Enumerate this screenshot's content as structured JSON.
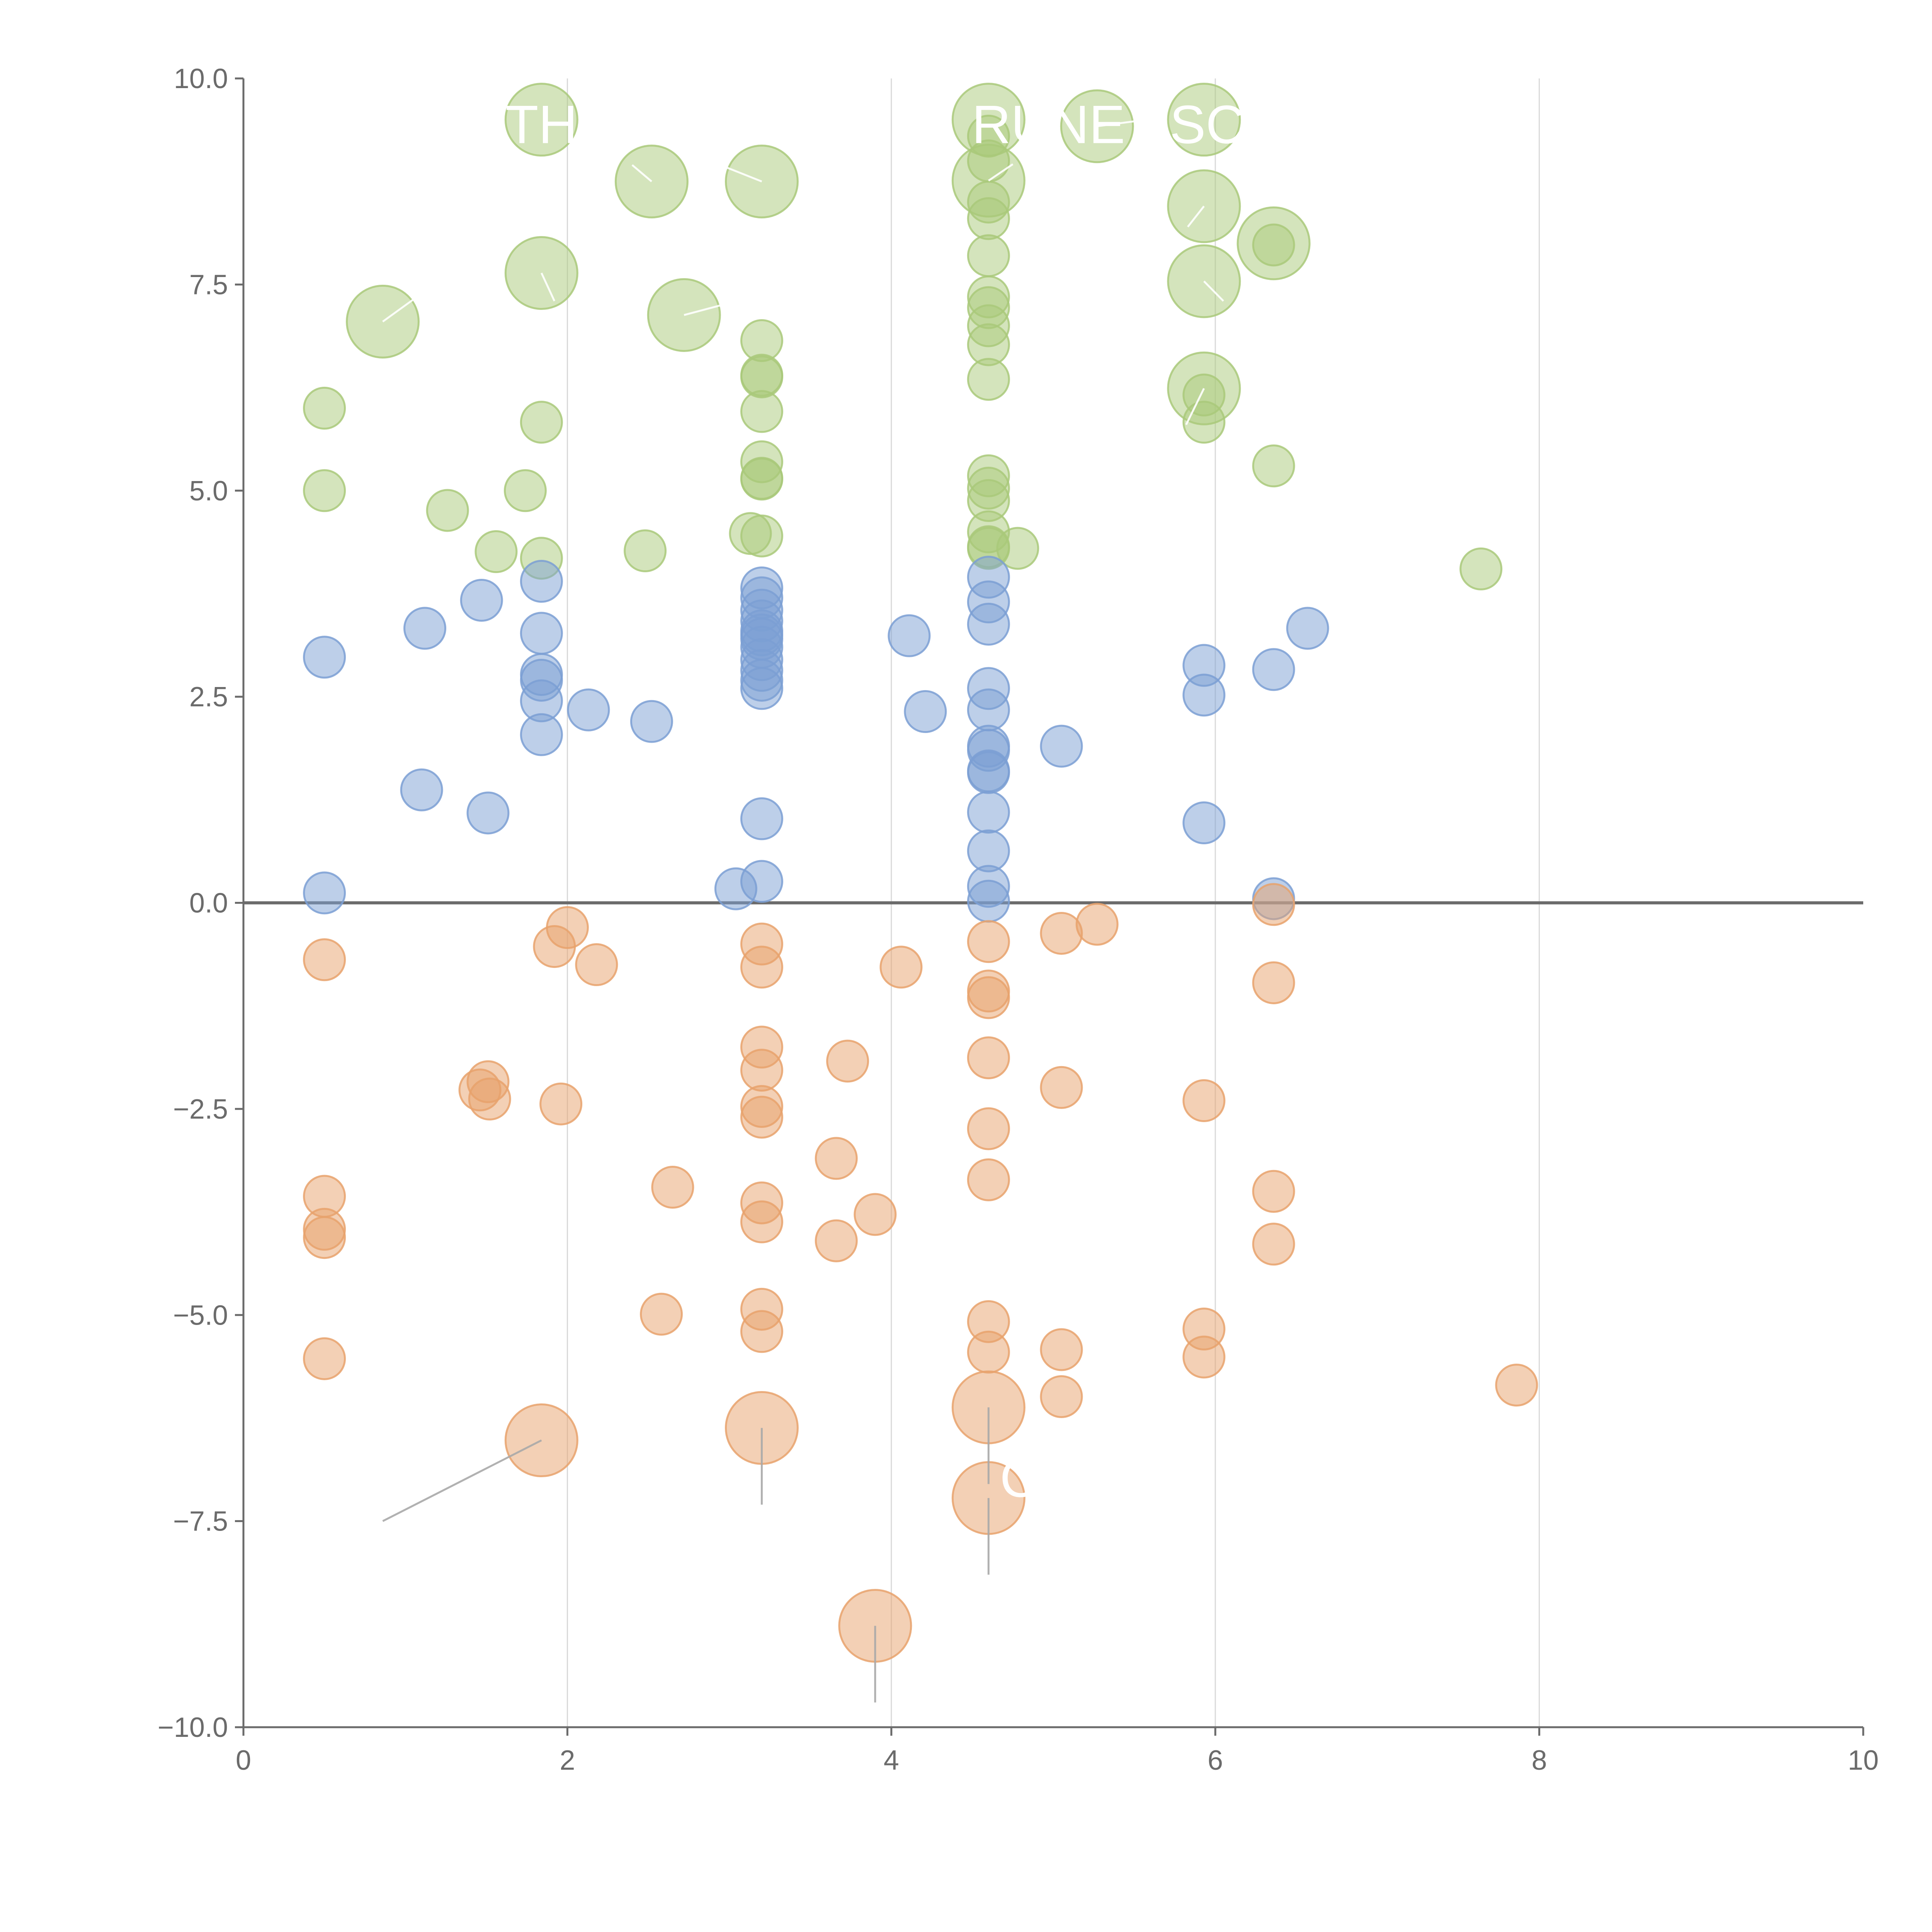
{
  "chart_data": {
    "type": "scatter",
    "title": "",
    "xlabel": "",
    "ylabel": "",
    "xlim": [
      0,
      10
    ],
    "ylim": [
      -10,
      10
    ],
    "grid": "vertical",
    "x_ticks": [
      0,
      2,
      4,
      6,
      8,
      10
    ],
    "x_tick_labels": [
      "0",
      "2",
      "4",
      "6",
      "8",
      "10"
    ],
    "y_ticks": [
      10,
      7.5,
      5,
      2.5,
      0,
      -2.5,
      -5,
      -7.5,
      -10
    ],
    "y_tick_labels": [
      "10.0",
      "7.5",
      "5.0",
      "2.5",
      "0.0",
      "−2.5",
      "−5.0",
      "−7.5",
      "−10.0"
    ],
    "zero_line": 0,
    "colors": {
      "green": "#a9c97a",
      "blue": "#7b9fd4",
      "orange": "#e8a26c",
      "axis": "#6b6b6b",
      "grid": "#d9d9d9",
      "leader": "#a8a8a8"
    },
    "series": [
      {
        "name": "green",
        "color_key": "green",
        "points": [
          {
            "x": 1.84,
            "y": 9.5,
            "s": "L"
          },
          {
            "x": 2.52,
            "y": 8.75,
            "s": "L"
          },
          {
            "x": 3.2,
            "y": 8.75,
            "s": "L"
          },
          {
            "x": 4.6,
            "y": 9.5,
            "s": "L"
          },
          {
            "x": 4.6,
            "y": 8.76,
            "s": "L"
          },
          {
            "x": 5.27,
            "y": 9.42,
            "s": "L"
          },
          {
            "x": 5.93,
            "y": 9.5,
            "s": "L"
          },
          {
            "x": 5.93,
            "y": 8.45,
            "s": "L"
          },
          {
            "x": 6.36,
            "y": 8.0,
            "s": "L"
          },
          {
            "x": 1.84,
            "y": 7.64,
            "s": "L"
          },
          {
            "x": 0.86,
            "y": 7.05,
            "s": "L"
          },
          {
            "x": 2.72,
            "y": 7.13,
            "s": "L"
          },
          {
            "x": 5.93,
            "y": 7.54,
            "s": "L"
          },
          {
            "x": 5.93,
            "y": 6.24,
            "s": "L"
          },
          {
            "x": 4.6,
            "y": 9.3,
            "s": "S"
          },
          {
            "x": 4.6,
            "y": 9.0,
            "s": "S"
          },
          {
            "x": 4.6,
            "y": 8.5,
            "s": "S"
          },
          {
            "x": 4.6,
            "y": 8.3,
            "s": "S"
          },
          {
            "x": 4.6,
            "y": 7.85,
            "s": "S"
          },
          {
            "x": 4.6,
            "y": 7.35,
            "s": "S"
          },
          {
            "x": 4.6,
            "y": 7.22,
            "s": "S"
          },
          {
            "x": 4.6,
            "y": 7.0,
            "s": "S"
          },
          {
            "x": 4.6,
            "y": 6.77,
            "s": "S"
          },
          {
            "x": 4.6,
            "y": 6.35,
            "s": "S"
          },
          {
            "x": 6.36,
            "y": 7.98,
            "s": "S"
          },
          {
            "x": 3.2,
            "y": 6.82,
            "s": "S"
          },
          {
            "x": 3.2,
            "y": 6.4,
            "s": "S"
          },
          {
            "x": 3.2,
            "y": 6.38,
            "s": "S"
          },
          {
            "x": 3.2,
            "y": 5.96,
            "s": "S"
          },
          {
            "x": 3.2,
            "y": 5.35,
            "s": "S"
          },
          {
            "x": 3.2,
            "y": 5.15,
            "s": "S"
          },
          {
            "x": 3.2,
            "y": 5.14,
            "s": "S"
          },
          {
            "x": 3.2,
            "y": 4.45,
            "s": "S"
          },
          {
            "x": 3.13,
            "y": 4.48,
            "s": "S"
          },
          {
            "x": 0.5,
            "y": 6.0,
            "s": "S"
          },
          {
            "x": 0.5,
            "y": 5.0,
            "s": "S"
          },
          {
            "x": 1.26,
            "y": 4.76,
            "s": "S"
          },
          {
            "x": 1.56,
            "y": 4.26,
            "s": "S"
          },
          {
            "x": 1.74,
            "y": 5.0,
            "s": "S"
          },
          {
            "x": 1.84,
            "y": 5.83,
            "s": "S"
          },
          {
            "x": 1.84,
            "y": 4.18,
            "s": "S"
          },
          {
            "x": 2.48,
            "y": 4.27,
            "s": "S"
          },
          {
            "x": 4.6,
            "y": 5.18,
            "s": "S"
          },
          {
            "x": 4.6,
            "y": 5.03,
            "s": "S"
          },
          {
            "x": 4.6,
            "y": 4.88,
            "s": "S"
          },
          {
            "x": 4.6,
            "y": 4.5,
            "s": "S"
          },
          {
            "x": 4.6,
            "y": 4.32,
            "s": "S"
          },
          {
            "x": 4.6,
            "y": 4.3,
            "s": "S"
          },
          {
            "x": 4.78,
            "y": 4.3,
            "s": "S"
          },
          {
            "x": 5.93,
            "y": 6.16,
            "s": "S"
          },
          {
            "x": 5.93,
            "y": 5.83,
            "s": "S"
          },
          {
            "x": 6.36,
            "y": 5.3,
            "s": "S"
          },
          {
            "x": 7.64,
            "y": 4.05,
            "s": "S"
          }
        ]
      },
      {
        "name": "blue",
        "color_key": "blue",
        "points": [
          {
            "x": 0.5,
            "y": 2.98,
            "s": "S"
          },
          {
            "x": 1.12,
            "y": 3.33,
            "s": "S"
          },
          {
            "x": 1.47,
            "y": 3.67,
            "s": "S"
          },
          {
            "x": 1.84,
            "y": 3.9,
            "s": "S"
          },
          {
            "x": 1.84,
            "y": 3.27,
            "s": "S"
          },
          {
            "x": 1.84,
            "y": 2.77,
            "s": "S"
          },
          {
            "x": 1.84,
            "y": 2.7,
            "s": "S"
          },
          {
            "x": 1.84,
            "y": 2.45,
            "s": "S"
          },
          {
            "x": 1.84,
            "y": 2.04,
            "s": "S"
          },
          {
            "x": 2.13,
            "y": 2.34,
            "s": "S"
          },
          {
            "x": 2.52,
            "y": 2.2,
            "s": "S"
          },
          {
            "x": 1.1,
            "y": 1.37,
            "s": "S"
          },
          {
            "x": 1.51,
            "y": 1.09,
            "s": "S"
          },
          {
            "x": 0.5,
            "y": 0.12,
            "s": "S"
          },
          {
            "x": 3.2,
            "y": 3.82,
            "s": "S"
          },
          {
            "x": 3.2,
            "y": 3.7,
            "s": "S"
          },
          {
            "x": 3.2,
            "y": 3.55,
            "s": "S"
          },
          {
            "x": 3.2,
            "y": 3.42,
            "s": "S"
          },
          {
            "x": 3.2,
            "y": 3.3,
            "s": "S"
          },
          {
            "x": 3.2,
            "y": 3.25,
            "s": "S"
          },
          {
            "x": 3.2,
            "y": 3.2,
            "s": "S"
          },
          {
            "x": 3.2,
            "y": 3.1,
            "s": "S"
          },
          {
            "x": 3.2,
            "y": 2.95,
            "s": "S"
          },
          {
            "x": 3.2,
            "y": 2.82,
            "s": "S"
          },
          {
            "x": 3.2,
            "y": 2.7,
            "s": "S"
          },
          {
            "x": 3.2,
            "y": 2.6,
            "s": "S"
          },
          {
            "x": 3.2,
            "y": 1.02,
            "s": "S"
          },
          {
            "x": 3.2,
            "y": 0.26,
            "s": "S"
          },
          {
            "x": 3.04,
            "y": 0.17,
            "s": "S"
          },
          {
            "x": 4.11,
            "y": 3.24,
            "s": "S"
          },
          {
            "x": 4.21,
            "y": 2.32,
            "s": "S"
          },
          {
            "x": 4.6,
            "y": 3.95,
            "s": "S"
          },
          {
            "x": 4.6,
            "y": 3.65,
            "s": "S"
          },
          {
            "x": 4.6,
            "y": 3.38,
            "s": "S"
          },
          {
            "x": 4.6,
            "y": 2.6,
            "s": "S"
          },
          {
            "x": 4.6,
            "y": 2.34,
            "s": "S"
          },
          {
            "x": 4.6,
            "y": 1.9,
            "s": "S"
          },
          {
            "x": 4.6,
            "y": 1.85,
            "s": "S"
          },
          {
            "x": 4.6,
            "y": 1.6,
            "s": "S"
          },
          {
            "x": 4.6,
            "y": 1.58,
            "s": "S"
          },
          {
            "x": 4.6,
            "y": 1.1,
            "s": "S"
          },
          {
            "x": 4.6,
            "y": 0.63,
            "s": "S"
          },
          {
            "x": 4.6,
            "y": 0.2,
            "s": "S"
          },
          {
            "x": 4.6,
            "y": 0.02,
            "s": "S"
          },
          {
            "x": 5.05,
            "y": 1.9,
            "s": "S"
          },
          {
            "x": 5.93,
            "y": 2.88,
            "s": "S"
          },
          {
            "x": 5.93,
            "y": 2.52,
            "s": "S"
          },
          {
            "x": 5.93,
            "y": 0.97,
            "s": "S"
          },
          {
            "x": 6.36,
            "y": 2.83,
            "s": "S"
          },
          {
            "x": 6.57,
            "y": 3.33,
            "s": "S"
          },
          {
            "x": 6.36,
            "y": 0.05,
            "s": "S"
          }
        ]
      },
      {
        "name": "orange",
        "color_key": "orange",
        "points": [
          {
            "x": 0.5,
            "y": -0.69,
            "s": "S"
          },
          {
            "x": 2.0,
            "y": -0.3,
            "s": "S"
          },
          {
            "x": 1.92,
            "y": -0.53,
            "s": "S"
          },
          {
            "x": 2.18,
            "y": -0.75,
            "s": "S"
          },
          {
            "x": 3.2,
            "y": -0.5,
            "s": "S"
          },
          {
            "x": 3.2,
            "y": -0.78,
            "s": "S"
          },
          {
            "x": 4.06,
            "y": -0.78,
            "s": "S"
          },
          {
            "x": 4.6,
            "y": -0.47,
            "s": "S"
          },
          {
            "x": 5.05,
            "y": -0.37,
            "s": "S"
          },
          {
            "x": 5.27,
            "y": -0.26,
            "s": "S"
          },
          {
            "x": 6.36,
            "y": -0.02,
            "s": "S"
          },
          {
            "x": 6.36,
            "y": -0.97,
            "s": "S"
          },
          {
            "x": 4.6,
            "y": -1.07,
            "s": "S"
          },
          {
            "x": 4.6,
            "y": -1.15,
            "s": "S"
          },
          {
            "x": 3.2,
            "y": -1.75,
            "s": "S"
          },
          {
            "x": 3.2,
            "y": -2.03,
            "s": "S"
          },
          {
            "x": 3.73,
            "y": -1.92,
            "s": "S"
          },
          {
            "x": 4.6,
            "y": -1.88,
            "s": "S"
          },
          {
            "x": 1.46,
            "y": -2.27,
            "s": "S"
          },
          {
            "x": 1.51,
            "y": -2.17,
            "s": "S"
          },
          {
            "x": 1.52,
            "y": -2.38,
            "s": "S"
          },
          {
            "x": 1.96,
            "y": -2.44,
            "s": "S"
          },
          {
            "x": 3.2,
            "y": -2.47,
            "s": "S"
          },
          {
            "x": 3.2,
            "y": -2.6,
            "s": "S"
          },
          {
            "x": 5.05,
            "y": -2.24,
            "s": "S"
          },
          {
            "x": 5.93,
            "y": -2.4,
            "s": "S"
          },
          {
            "x": 4.6,
            "y": -2.74,
            "s": "S"
          },
          {
            "x": 3.66,
            "y": -3.1,
            "s": "S"
          },
          {
            "x": 2.65,
            "y": -3.45,
            "s": "S"
          },
          {
            "x": 4.6,
            "y": -3.36,
            "s": "S"
          },
          {
            "x": 6.36,
            "y": -3.5,
            "s": "S"
          },
          {
            "x": 0.5,
            "y": -3.56,
            "s": "S"
          },
          {
            "x": 0.5,
            "y": -3.96,
            "s": "S"
          },
          {
            "x": 0.5,
            "y": -4.06,
            "s": "S"
          },
          {
            "x": 3.2,
            "y": -3.64,
            "s": "S"
          },
          {
            "x": 3.2,
            "y": -3.87,
            "s": "S"
          },
          {
            "x": 3.66,
            "y": -4.1,
            "s": "S"
          },
          {
            "x": 3.9,
            "y": -3.78,
            "s": "S"
          },
          {
            "x": 6.36,
            "y": -4.14,
            "s": "S"
          },
          {
            "x": 2.58,
            "y": -4.99,
            "s": "S"
          },
          {
            "x": 3.2,
            "y": -4.93,
            "s": "S"
          },
          {
            "x": 3.2,
            "y": -5.2,
            "s": "S"
          },
          {
            "x": 4.6,
            "y": -5.08,
            "s": "S"
          },
          {
            "x": 4.6,
            "y": -5.45,
            "s": "S"
          },
          {
            "x": 5.05,
            "y": -5.42,
            "s": "S"
          },
          {
            "x": 5.05,
            "y": -5.99,
            "s": "S"
          },
          {
            "x": 5.93,
            "y": -5.17,
            "s": "S"
          },
          {
            "x": 5.93,
            "y": -5.51,
            "s": "S"
          },
          {
            "x": 0.5,
            "y": -5.53,
            "s": "S"
          },
          {
            "x": 7.86,
            "y": -5.85,
            "s": "S"
          },
          {
            "x": 1.84,
            "y": -6.52,
            "s": "L"
          },
          {
            "x": 3.2,
            "y": -6.37,
            "s": "L"
          },
          {
            "x": 4.6,
            "y": -6.12,
            "s": "L"
          },
          {
            "x": 4.6,
            "y": -7.22,
            "s": "L"
          },
          {
            "x": 3.9,
            "y": -8.77,
            "s": "L"
          }
        ]
      }
    ],
    "sizes": {
      "S": 0.45,
      "L": 1.0
    },
    "leader_lines": [
      {
        "from": [
          1.84,
          -6.52
        ],
        "to": [
          0.86,
          -7.5
        ],
        "color_key": "leader"
      },
      {
        "from": [
          3.2,
          -6.37
        ],
        "to": [
          3.2,
          -7.3
        ],
        "color_key": "leader"
      },
      {
        "from": [
          4.6,
          -6.12
        ],
        "to": [
          4.6,
          -7.05
        ],
        "color_key": "leader"
      },
      {
        "from": [
          4.6,
          -7.22
        ],
        "to": [
          4.6,
          -8.15
        ],
        "color_key": "leader"
      },
      {
        "from": [
          3.9,
          -8.77
        ],
        "to": [
          3.9,
          -9.7
        ],
        "color_key": "leader"
      },
      {
        "from": [
          0.86,
          7.05
        ],
        "to": [
          1.05,
          7.32
        ],
        "color_key": "white"
      },
      {
        "from": [
          1.84,
          7.64
        ],
        "to": [
          1.92,
          7.3
        ],
        "color_key": "white"
      },
      {
        "from": [
          2.52,
          8.75
        ],
        "to": [
          2.4,
          8.95
        ],
        "color_key": "white"
      },
      {
        "from": [
          3.2,
          8.75
        ],
        "to": [
          2.97,
          8.93
        ],
        "color_key": "white"
      },
      {
        "from": [
          2.72,
          7.13
        ],
        "to": [
          2.95,
          7.25
        ],
        "color_key": "white"
      },
      {
        "from": [
          4.6,
          8.76
        ],
        "to": [
          4.75,
          8.96
        ],
        "color_key": "white"
      },
      {
        "from": [
          5.27,
          9.42
        ],
        "to": [
          5.5,
          9.48
        ],
        "color_key": "white"
      },
      {
        "from": [
          5.93,
          8.45
        ],
        "to": [
          5.83,
          8.2
        ],
        "color_key": "white"
      },
      {
        "from": [
          5.93,
          7.54
        ],
        "to": [
          6.05,
          7.3
        ],
        "color_key": "white"
      },
      {
        "from": [
          5.93,
          6.24
        ],
        "to": [
          5.82,
          5.8
        ],
        "color_key": "white"
      }
    ],
    "annotations": [
      {
        "x": 1.84,
        "y": 9.45,
        "text": "TH"
      },
      {
        "x": 4.97,
        "y": 9.45,
        "text": "RUNE"
      },
      {
        "x": 5.95,
        "y": 9.45,
        "text": "SC"
      },
      {
        "x": 4.79,
        "y": -6.97,
        "text": "C"
      }
    ]
  }
}
